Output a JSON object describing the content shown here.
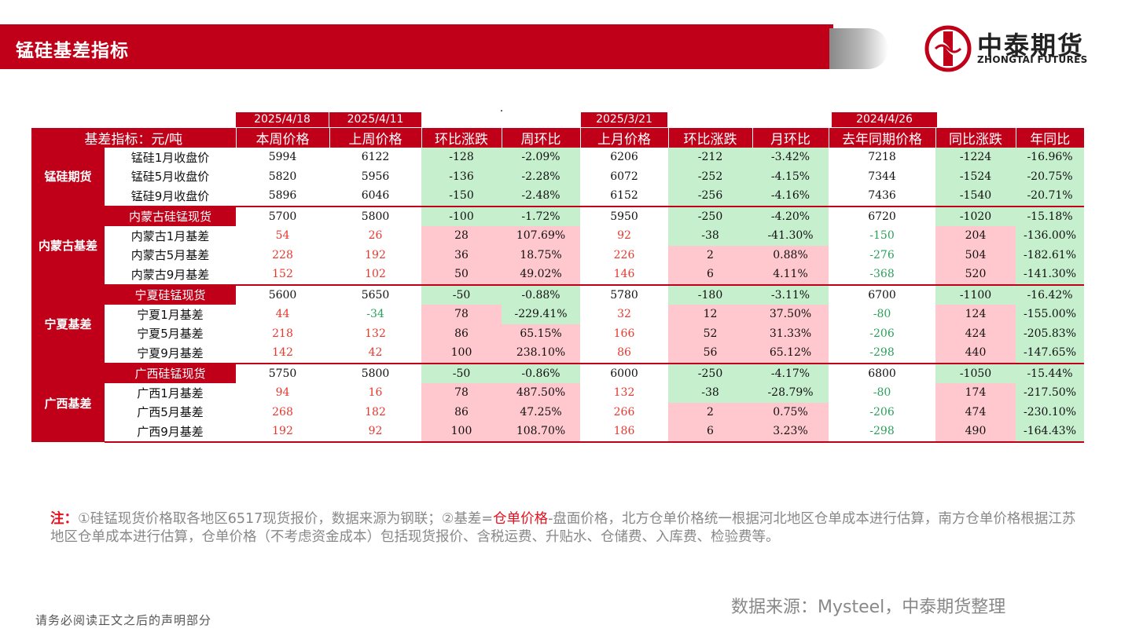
{
  "header": {
    "title": "锰硅基差指标",
    "brand_cn": "中泰期货",
    "brand_en": "ZHONGTAI FUTURES"
  },
  "dates": {
    "current": "2025/4/18",
    "last_week": "2025/4/11",
    "last_month": "2025/3/21",
    "last_year": "2024/4/26"
  },
  "columns": [
    "基差指标：元/吨",
    "本周价格",
    "上周价格",
    "环比涨跌",
    "周环比",
    "上月价格",
    "环比涨跌",
    "月环比",
    "去年同期价格",
    "同比涨跌",
    "年同比"
  ],
  "groups": [
    {
      "category": "锰硅期货",
      "rows": [
        {
          "name": "锰硅1月收盘价",
          "spot": false,
          "cells": [
            "5994",
            "6122",
            "-128",
            "-2.09%",
            "6206",
            "-212",
            "-3.42%",
            "7218",
            "-1224",
            "-16.96%"
          ]
        },
        {
          "name": "锰硅5月收盘价",
          "spot": false,
          "cells": [
            "5820",
            "5956",
            "-136",
            "-2.28%",
            "6072",
            "-252",
            "-4.15%",
            "7344",
            "-1524",
            "-20.75%"
          ]
        },
        {
          "name": "锰硅9月收盘价",
          "spot": false,
          "cells": [
            "5896",
            "6046",
            "-150",
            "-2.48%",
            "6152",
            "-256",
            "-4.16%",
            "7436",
            "-1540",
            "-20.71%"
          ]
        }
      ]
    },
    {
      "category": "内蒙古基差",
      "rows": [
        {
          "name": "内蒙古硅锰现货",
          "spot": true,
          "cells": [
            "5700",
            "5800",
            "-100",
            "-1.72%",
            "5950",
            "-250",
            "-4.20%",
            "6720",
            "-1020",
            "-15.18%"
          ]
        },
        {
          "name": "内蒙古1月基差",
          "spot": false,
          "cells": [
            "54",
            "26",
            "28",
            "107.69%",
            "92",
            "-38",
            "-41.30%",
            "-150",
            "204",
            "-136.00%"
          ]
        },
        {
          "name": "内蒙古5月基差",
          "spot": false,
          "cells": [
            "228",
            "192",
            "36",
            "18.75%",
            "226",
            "2",
            "0.88%",
            "-276",
            "504",
            "-182.61%"
          ]
        },
        {
          "name": "内蒙古9月基差",
          "spot": false,
          "cells": [
            "152",
            "102",
            "50",
            "49.02%",
            "146",
            "6",
            "4.11%",
            "-368",
            "520",
            "-141.30%"
          ]
        }
      ]
    },
    {
      "category": "宁夏基差",
      "rows": [
        {
          "name": "宁夏硅锰现货",
          "spot": true,
          "cells": [
            "5600",
            "5650",
            "-50",
            "-0.88%",
            "5780",
            "-180",
            "-3.11%",
            "6700",
            "-1100",
            "-16.42%"
          ]
        },
        {
          "name": "宁夏1月基差",
          "spot": false,
          "cells": [
            "44",
            "-34",
            "78",
            "-229.41%",
            "32",
            "12",
            "37.50%",
            "-80",
            "124",
            "-155.00%"
          ]
        },
        {
          "name": "宁夏5月基差",
          "spot": false,
          "cells": [
            "218",
            "132",
            "86",
            "65.15%",
            "166",
            "52",
            "31.33%",
            "-206",
            "424",
            "-205.83%"
          ]
        },
        {
          "name": "宁夏9月基差",
          "spot": false,
          "cells": [
            "142",
            "42",
            "100",
            "238.10%",
            "86",
            "56",
            "65.12%",
            "-298",
            "440",
            "-147.65%"
          ]
        }
      ]
    },
    {
      "category": "广西基差",
      "rows": [
        {
          "name": "广西硅锰现货",
          "spot": true,
          "cells": [
            "5750",
            "5800",
            "-50",
            "-0.86%",
            "6000",
            "-250",
            "-4.17%",
            "6800",
            "-1050",
            "-15.44%"
          ]
        },
        {
          "name": "广西1月基差",
          "spot": false,
          "cells": [
            "94",
            "16",
            "78",
            "487.50%",
            "132",
            "-38",
            "-28.79%",
            "-80",
            "174",
            "-217.50%"
          ]
        },
        {
          "name": "广西5月基差",
          "spot": false,
          "cells": [
            "268",
            "182",
            "86",
            "47.25%",
            "266",
            "2",
            "0.75%",
            "-206",
            "474",
            "-230.10%"
          ]
        },
        {
          "name": "广西9月基差",
          "spot": false,
          "cells": [
            "192",
            "92",
            "100",
            "108.70%",
            "186",
            "6",
            "3.23%",
            "-298",
            "490",
            "-164.43%"
          ]
        }
      ]
    }
  ],
  "note": {
    "label": "注：",
    "text1": "①硅锰现货价格取各地区6517现货报价，数据来源为钢联；②基差=",
    "highlight": "仓单价格",
    "text2": "-盘面价格，北方仓单价格统一根据河北地区仓单成本进行估算，南方仓单价格根据江苏地区仓单成本进行估算，仓单价格（不考虑资金成本）包括现货报价、含税运费、升贴水、仓储费、入库费、检验费等。"
  },
  "source": "数据来源：Mysteel，中泰期货整理",
  "footer": "请务必阅读正文之后的声明部分",
  "colors": {
    "brand_red": "#c00018",
    "up_fill": "#ffc7ce",
    "down_fill": "#c6efce",
    "positive_text": "#e8382e",
    "negative_text": "#2aa05a"
  }
}
